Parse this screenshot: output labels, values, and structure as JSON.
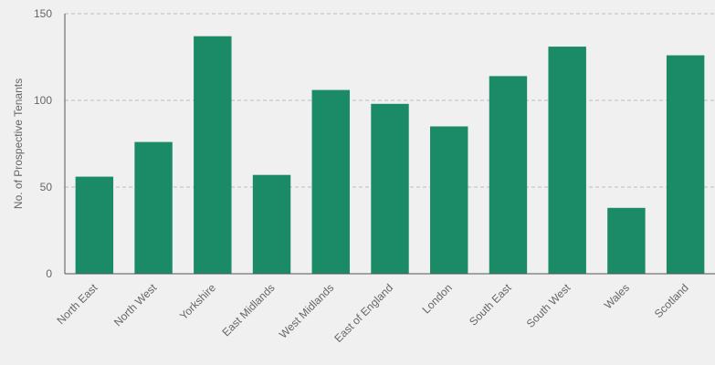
{
  "chart_data": {
    "type": "bar",
    "title": "",
    "xlabel": "",
    "ylabel": "No. of Prospective Tenants",
    "categories": [
      "North East",
      "North West",
      "Yorkshire",
      "East Midlands",
      "West Midlands",
      "East of England",
      "London",
      "South East",
      "South West",
      "Wales",
      "Scotland"
    ],
    "values": [
      56,
      76,
      137,
      57,
      106,
      98,
      85,
      114,
      131,
      38,
      126
    ],
    "ylim": [
      0,
      150
    ],
    "yticks": [
      "0",
      "50",
      "100",
      "150"
    ],
    "grid": true,
    "legend": "none",
    "colors": {
      "bar": "#1b8a67",
      "grid": "#bbbbbb",
      "axis": "#555555",
      "text": "#666666",
      "background": "#f0f0f0"
    }
  }
}
